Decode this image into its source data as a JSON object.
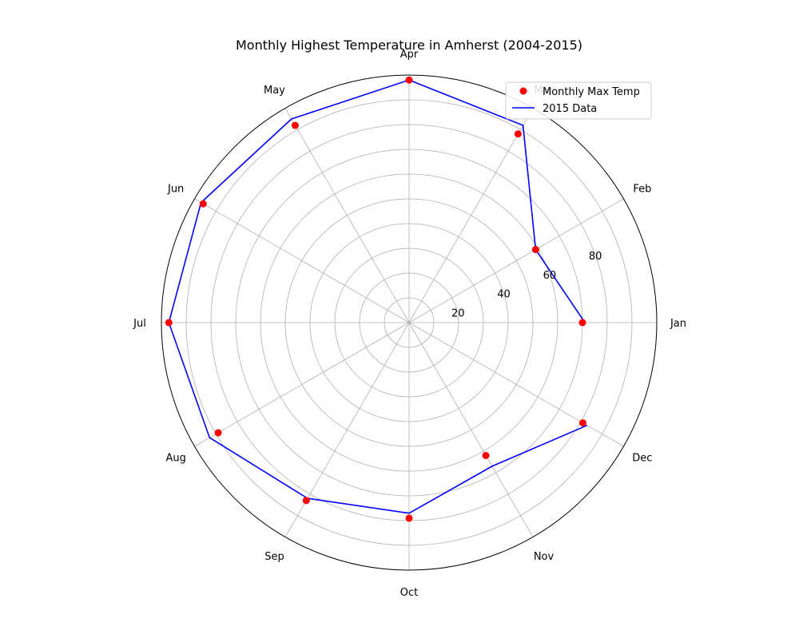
{
  "chart_data": {
    "type": "polar-line",
    "title": "Monthly Highest Temperature in Amherst (2004-2015)",
    "categories": [
      "Jan",
      "Feb",
      "Mar",
      "Apr",
      "May",
      "Jun",
      "Jul",
      "Aug",
      "Sep",
      "Oct",
      "Nov",
      "Dec"
    ],
    "radial_ticks": [
      "20",
      "40",
      "60",
      "80"
    ],
    "rlim": [
      0,
      100
    ],
    "grid": true,
    "legend_position": "top-right",
    "series": [
      {
        "name": "Monthly Max Temp",
        "style": "markers",
        "color": "#ff0000",
        "values": [
          70,
          59,
          88,
          98,
          92,
          96,
          97,
          89,
          83,
          79,
          62,
          81
        ]
      },
      {
        "name": "2015 Data",
        "style": "line",
        "color": "#0000ff",
        "values": [
          71,
          59,
          92,
          98,
          95,
          97,
          97,
          93,
          82,
          77,
          67,
          83
        ]
      }
    ]
  }
}
